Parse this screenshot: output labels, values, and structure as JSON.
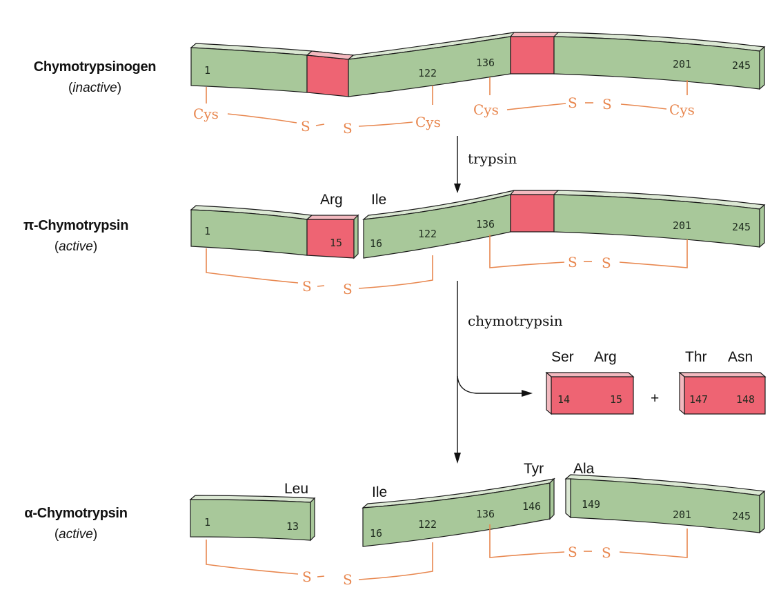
{
  "forms": {
    "chymotrypsinogen": {
      "name": "Chymotrypsinogen",
      "state": "inactive"
    },
    "pi": {
      "name": "π-Chymotrypsin",
      "state": "active"
    },
    "alpha": {
      "name": "α-Chymotrypsin",
      "state": "active"
    }
  },
  "enzymes": {
    "first": "trypsin",
    "second": "chymotrypsin"
  },
  "residues": {
    "r1": "1",
    "r13": "13",
    "r14": "14",
    "r15": "15",
    "r16": "16",
    "r122": "122",
    "r136": "136",
    "r146": "146",
    "r147": "147",
    "r148": "148",
    "r149": "149",
    "r201": "201",
    "r245": "245"
  },
  "amino_acids": {
    "arg": "Arg",
    "ile": "Ile",
    "ser": "Ser",
    "thr": "Thr",
    "asn": "Asn",
    "leu": "Leu",
    "tyr": "Tyr",
    "ala": "Ala"
  },
  "bond": {
    "cys": "Cys",
    "s": "S"
  },
  "plus": "+",
  "colors": {
    "chain": "#a8c89a",
    "excised": "#ee6473",
    "disulfide": "#e8874f"
  }
}
